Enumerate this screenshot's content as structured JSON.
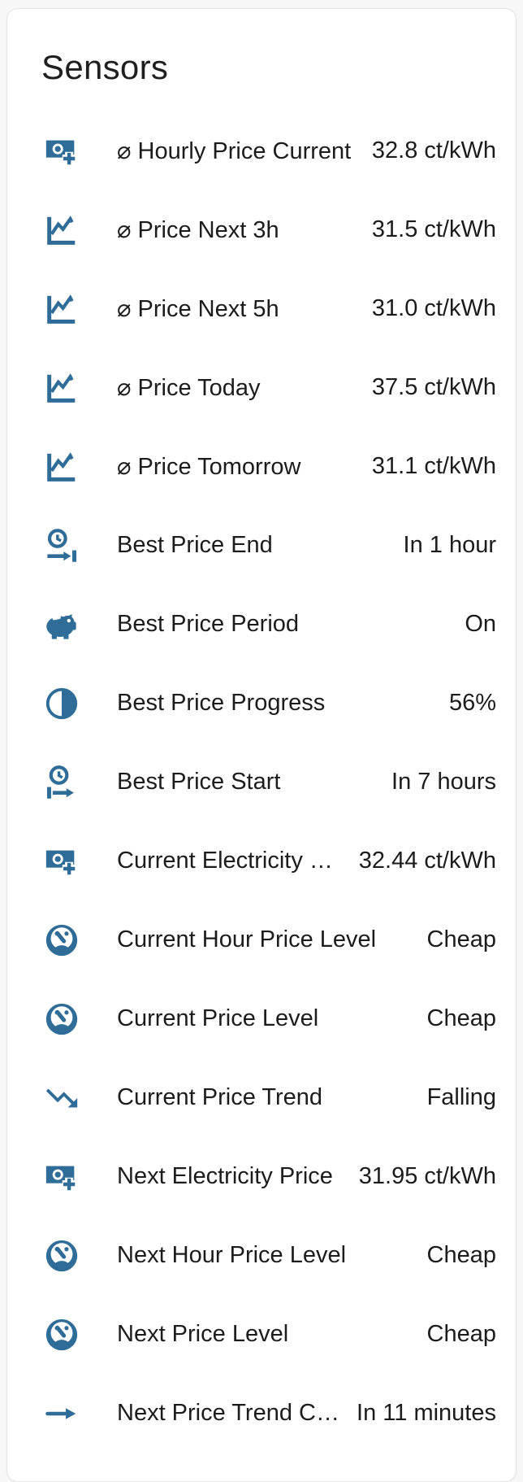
{
  "card": {
    "title": "Sensors",
    "rows": [
      {
        "icon": "cash-plus-icon",
        "name": "⌀ Hourly Price Current",
        "value": "32.8 ct/kWh"
      },
      {
        "icon": "chart-line-icon",
        "name": "⌀ Price Next 3h",
        "value": "31.5 ct/kWh"
      },
      {
        "icon": "chart-line-icon",
        "name": "⌀ Price Next 5h",
        "value": "31.0 ct/kWh"
      },
      {
        "icon": "chart-line-icon",
        "name": "⌀ Price Today",
        "value": "37.5 ct/kWh"
      },
      {
        "icon": "chart-line-icon",
        "name": "⌀ Price Tomorrow",
        "value": "31.1 ct/kWh"
      },
      {
        "icon": "clock-end-icon",
        "name": "Best Price End",
        "value": "In 1 hour"
      },
      {
        "icon": "piggy-bank-icon",
        "name": "Best Price Period",
        "value": "On"
      },
      {
        "icon": "circle-half-full-icon",
        "name": "Best Price Progress",
        "value": "56%"
      },
      {
        "icon": "clock-start-icon",
        "name": "Best Price Start",
        "value": "In 7 hours"
      },
      {
        "icon": "cash-plus-icon",
        "name": "Current Electricity Pr…",
        "value": "32.44 ct/kWh"
      },
      {
        "icon": "gauge-icon",
        "name": "Current Hour Price Level",
        "value": "Cheap"
      },
      {
        "icon": "gauge-icon",
        "name": "Current Price Level",
        "value": "Cheap"
      },
      {
        "icon": "trending-down-icon",
        "name": "Current Price Trend",
        "value": "Falling"
      },
      {
        "icon": "cash-plus-icon",
        "name": "Next Electricity Price",
        "value": "31.95 ct/kWh"
      },
      {
        "icon": "gauge-icon",
        "name": "Next Hour Price Level",
        "value": "Cheap"
      },
      {
        "icon": "gauge-icon",
        "name": "Next Price Level",
        "value": "Cheap"
      },
      {
        "icon": "arrow-right-icon",
        "name": "Next Price Trend Ch…",
        "value": "In 11 minutes"
      }
    ]
  },
  "colors": {
    "icon_blue": "#2f6d98",
    "text": "#1c1c1c",
    "card_background": "#ffffff",
    "page_background": "#f7f7f7",
    "card_border": "#e4e4e4"
  }
}
